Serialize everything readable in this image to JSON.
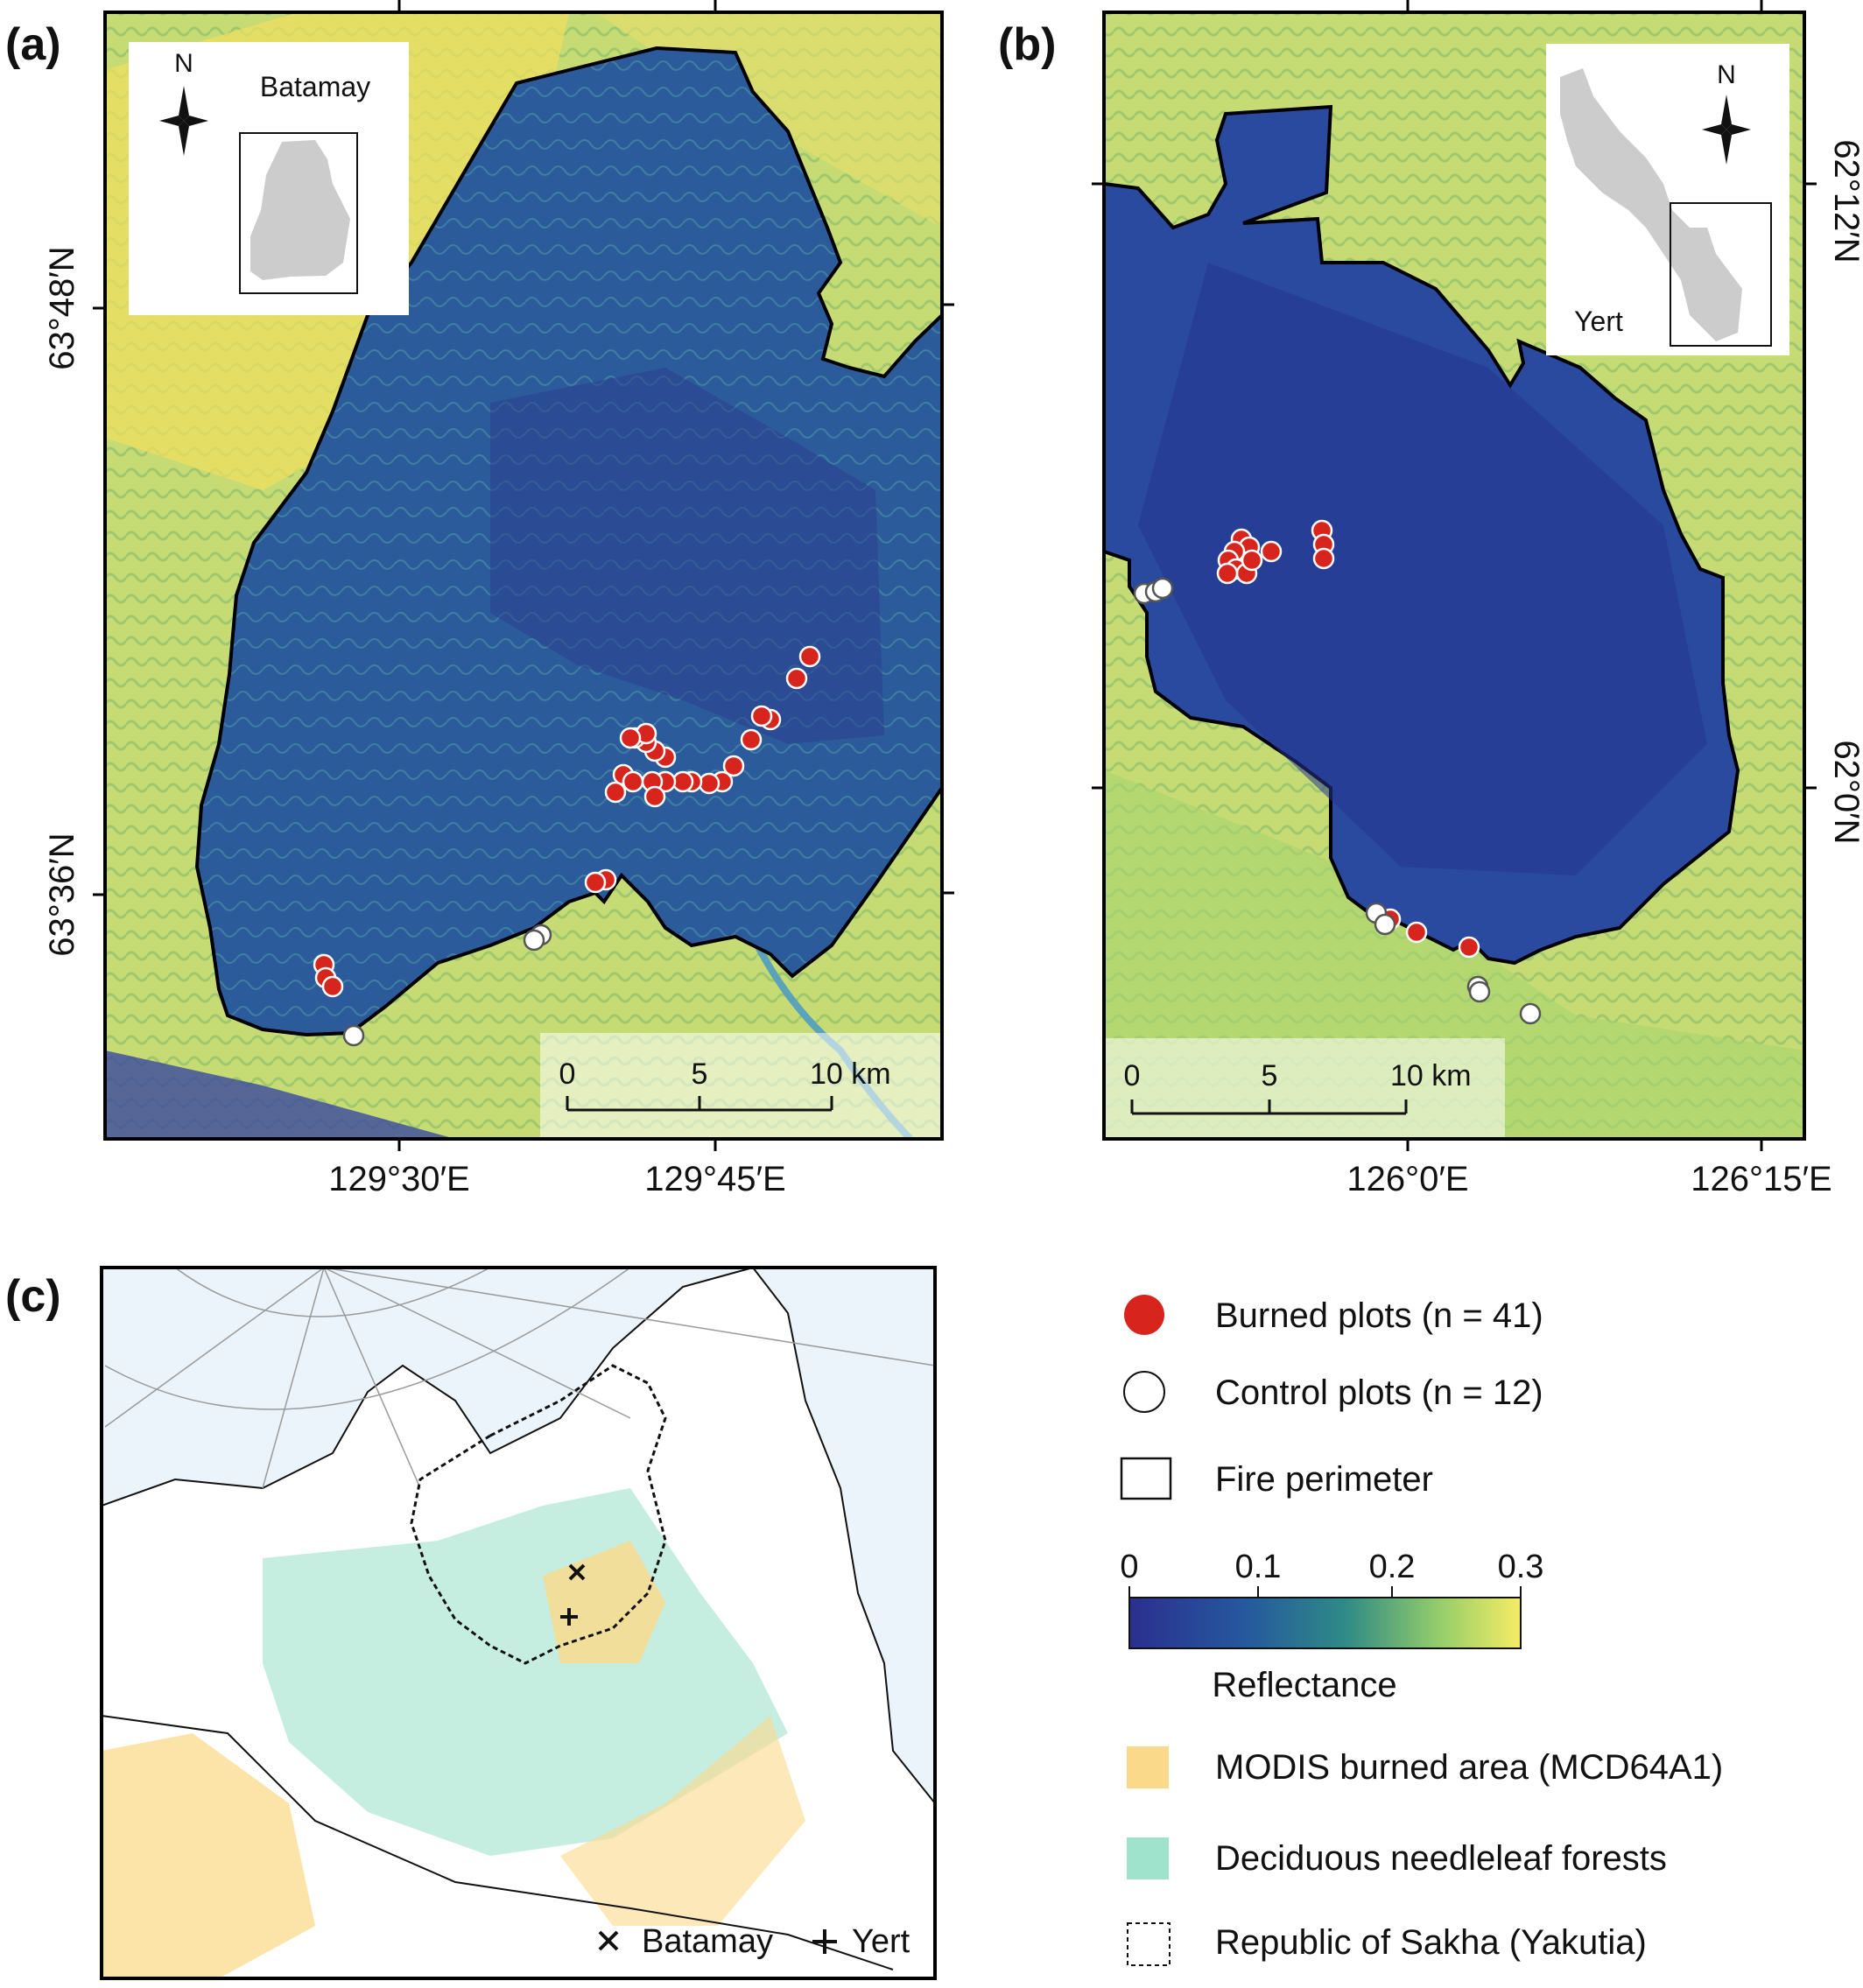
{
  "panel_a": {
    "tag": "(a)",
    "inset_title": "Batamay",
    "north_label": "N",
    "lat_ticks": [
      "63°48′N",
      "63°36′N"
    ],
    "lon_ticks": [
      "129°30′E",
      "129°45′E"
    ],
    "scalebar": {
      "ticks": [
        "0",
        "5",
        "10 km"
      ]
    }
  },
  "panel_b": {
    "tag": "(b)",
    "inset_title": "Yert",
    "north_label": "N",
    "lat_ticks": [
      "62°12′N",
      "62°0′N"
    ],
    "lon_ticks": [
      "126°0′E",
      "126°15′E"
    ],
    "scalebar": {
      "ticks": [
        "0",
        "5",
        "10 km"
      ]
    }
  },
  "panel_c": {
    "tag": "(c)",
    "map_legend": {
      "batamay": "Batamay",
      "yert": "Yert"
    }
  },
  "legend": {
    "burned": "Burned plots (n = 41)",
    "control": "Control plots (n = 12)",
    "perimeter": "Fire perimeter",
    "colorbar": {
      "ticks": [
        "0",
        "0.1",
        "0.2",
        "0.3"
      ],
      "label": "Reflectance"
    },
    "modis": "MODIS burned area (MCD64A1)",
    "deciduous": "Deciduous needleleaf forests",
    "sakha": "Republic of Sakha (Yakutia)"
  },
  "colors": {
    "burned": "#d7251d",
    "control": "#ffffff",
    "low_reflectance": "#2a3a9a",
    "mid_reflectance": "#2d7f7f",
    "high_reflectance": "#f3e85a",
    "modis": "#fbd98a",
    "deciduous": "#9fe3cd",
    "ocean": "#eaf4fa"
  }
}
